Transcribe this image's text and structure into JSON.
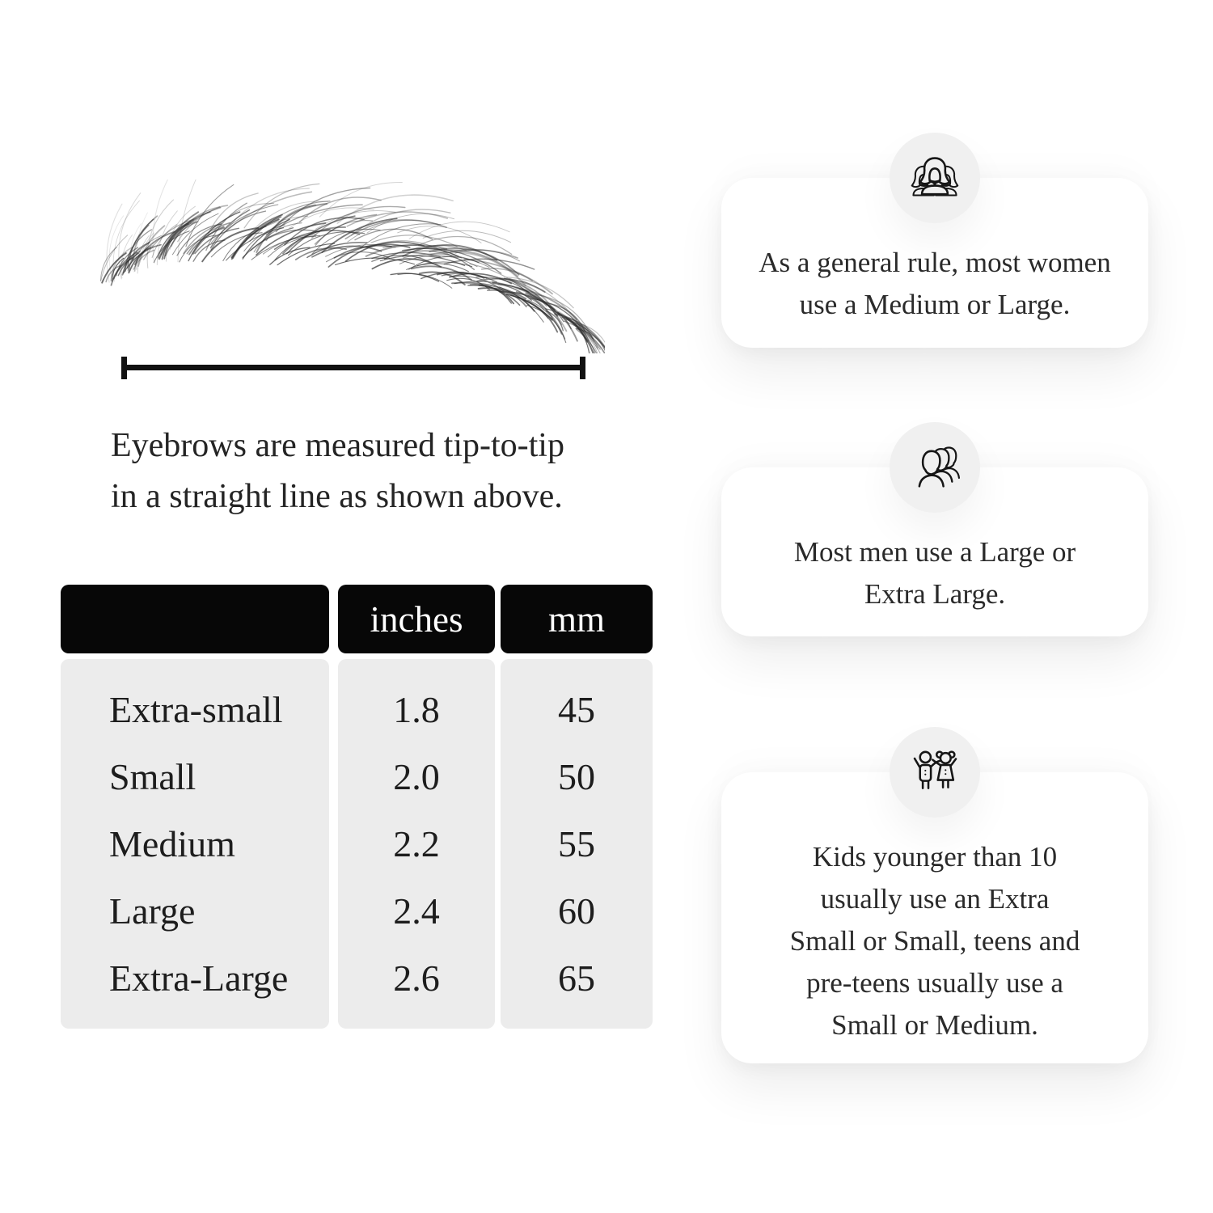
{
  "measure_diagram": {
    "caption": {
      "line1": "Eyebrows are measured tip-to-tip",
      "line2": "in a straight line as shown above."
    }
  },
  "size_table": {
    "columns": [
      "",
      "inches",
      "mm"
    ],
    "rows": [
      {
        "label": "Extra-small",
        "inches": "1.8",
        "mm": "45"
      },
      {
        "label": "Small",
        "inches": "2.0",
        "mm": "50"
      },
      {
        "label": "Medium",
        "inches": "2.2",
        "mm": "55"
      },
      {
        "label": "Large",
        "inches": "2.4",
        "mm": "60"
      },
      {
        "label": "Extra-Large",
        "inches": "2.6",
        "mm": "65"
      }
    ]
  },
  "cards": [
    {
      "icon": "women-group-icon",
      "text": "As a general rule, most women use a Medium or Large.",
      "lines": [
        "As a general rule, most women",
        "use a Medium or Large."
      ]
    },
    {
      "icon": "men-group-icon",
      "text": "Most men use a Large or Extra Large.",
      "lines": [
        "Most men use a Large or",
        "Extra Large."
      ]
    },
    {
      "icon": "kids-icon",
      "text": "Kids younger than 10 usually use an Extra Small or Small, teens and pre-teens usually use a Small or Medium.",
      "lines": [
        "Kids younger than 10",
        "usually use an Extra",
        "Small or Small, teens and",
        "pre-teens usually use a",
        "Small or Medium."
      ]
    }
  ],
  "colors": {
    "page_bg": "#ffffff",
    "card_bg": "#ffffff",
    "badge_bg": "#f0f0f0",
    "table_header_bg": "#070707",
    "table_header_text": "#ffffff",
    "table_body_bg": "#ececec",
    "text": "#222222",
    "icon_stroke": "#161616"
  }
}
